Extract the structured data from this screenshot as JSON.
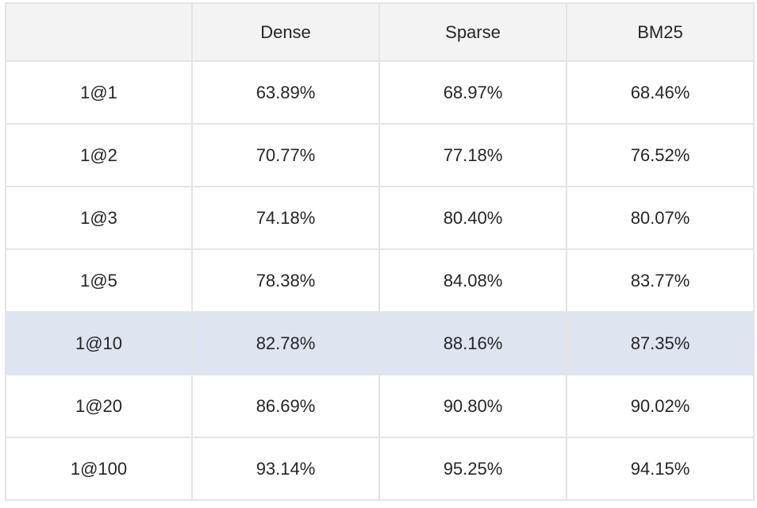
{
  "chart_data": {
    "type": "table",
    "columns": [
      "",
      "Dense",
      "Sparse",
      "BM25"
    ],
    "rows": [
      {
        "label": "1@1",
        "values": [
          "63.89%",
          "68.97%",
          "68.46%"
        ]
      },
      {
        "label": "1@2",
        "values": [
          "70.77%",
          "77.18%",
          "76.52%"
        ]
      },
      {
        "label": "1@3",
        "values": [
          "74.18%",
          "80.40%",
          "80.07%"
        ]
      },
      {
        "label": "1@5",
        "values": [
          "78.38%",
          "84.08%",
          "83.77%"
        ]
      },
      {
        "label": "1@10",
        "values": [
          "82.78%",
          "88.16%",
          "87.35%"
        ]
      },
      {
        "label": "1@20",
        "values": [
          "86.69%",
          "90.80%",
          "90.02%"
        ]
      },
      {
        "label": "1@100",
        "values": [
          "93.14%",
          "95.25%",
          "94.15%"
        ]
      }
    ],
    "highlighted_row": "1@10",
    "colors": {
      "header_bg": "#f3f3f3",
      "highlight_bg": "#dee4f0",
      "border": "#e4e4e4",
      "text": "#262626"
    }
  }
}
